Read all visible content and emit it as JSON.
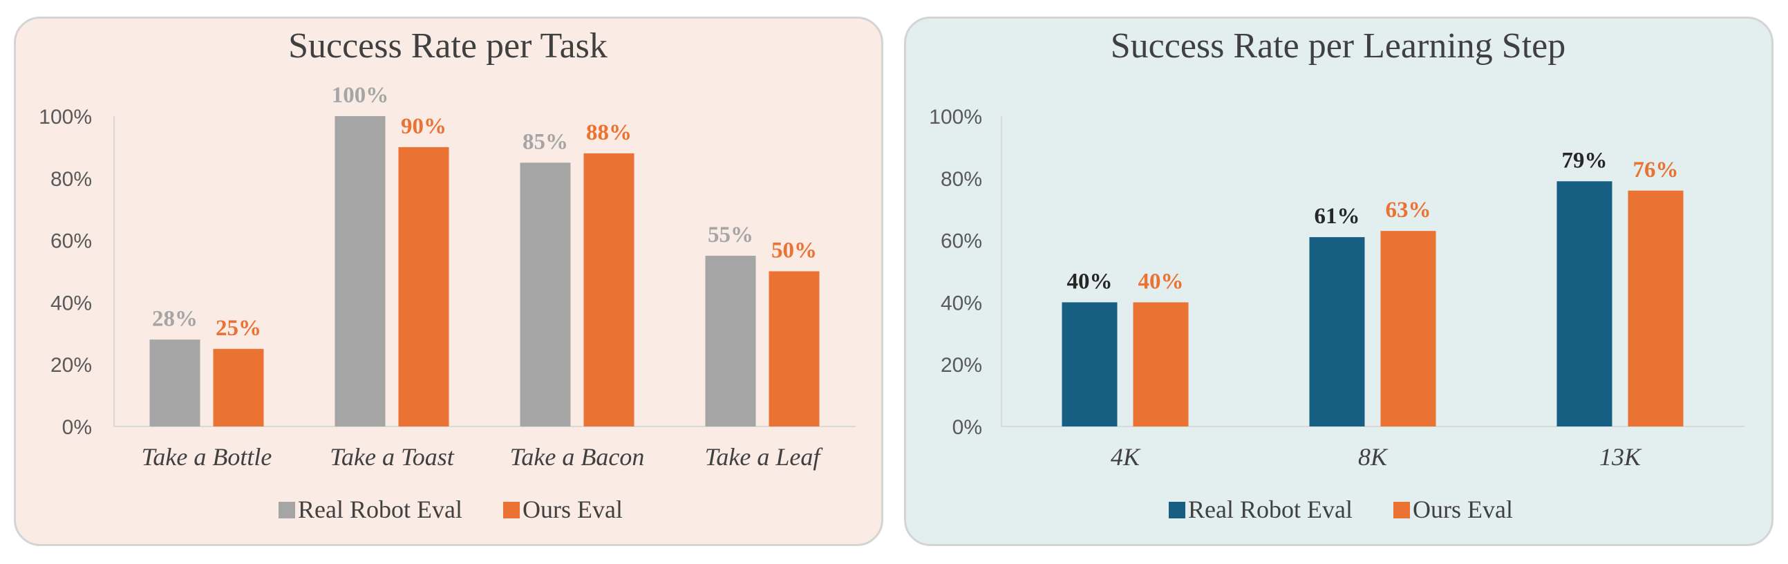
{
  "chart_data": [
    {
      "type": "bar",
      "title": "Success Rate per Task",
      "categories": [
        "Take a Bottle",
        "Take a Toast",
        "Take a Bacon",
        "Take a Leaf"
      ],
      "series": [
        {
          "name": "Real Robot Eval",
          "values": [
            28,
            100,
            85,
            55
          ],
          "labels": [
            "28%",
            "100%",
            "85%",
            "55%"
          ],
          "color": "#a5a5a5",
          "label_color": "#a5a5a5"
        },
        {
          "name": "Ours Eval",
          "values": [
            25,
            90,
            88,
            50
          ],
          "labels": [
            "25%",
            "90%",
            "88%",
            "50%"
          ],
          "color": "#ea7232",
          "label_color": "#ea7232"
        }
      ],
      "ylim": [
        0,
        100
      ],
      "yticks": [
        0,
        20,
        40,
        60,
        80,
        100
      ],
      "ytick_labels": [
        "0%",
        "20%",
        "40%",
        "60%",
        "80%",
        "100%"
      ],
      "xlabel": "",
      "ylabel": "",
      "legend": "bottom",
      "background": "#fbebe5"
    },
    {
      "type": "bar",
      "title": "Success Rate per Learning Step",
      "categories": [
        "4K",
        "8K",
        "13K"
      ],
      "series": [
        {
          "name": "Real Robot Eval",
          "values": [
            40,
            61,
            79
          ],
          "labels": [
            "40%",
            "61%",
            "79%"
          ],
          "color": "#165f82",
          "label_color": "#262626"
        },
        {
          "name": "Ours Eval",
          "values": [
            40,
            63,
            76
          ],
          "labels": [
            "40%",
            "63%",
            "76%"
          ],
          "color": "#ea7232",
          "label_color": "#ea7232"
        }
      ],
      "ylim": [
        0,
        100
      ],
      "yticks": [
        0,
        20,
        40,
        60,
        80,
        100
      ],
      "ytick_labels": [
        "0%",
        "20%",
        "40%",
        "60%",
        "80%",
        "100%"
      ],
      "xlabel": "",
      "ylabel": "",
      "legend": "bottom",
      "background": "#e3efee"
    }
  ]
}
